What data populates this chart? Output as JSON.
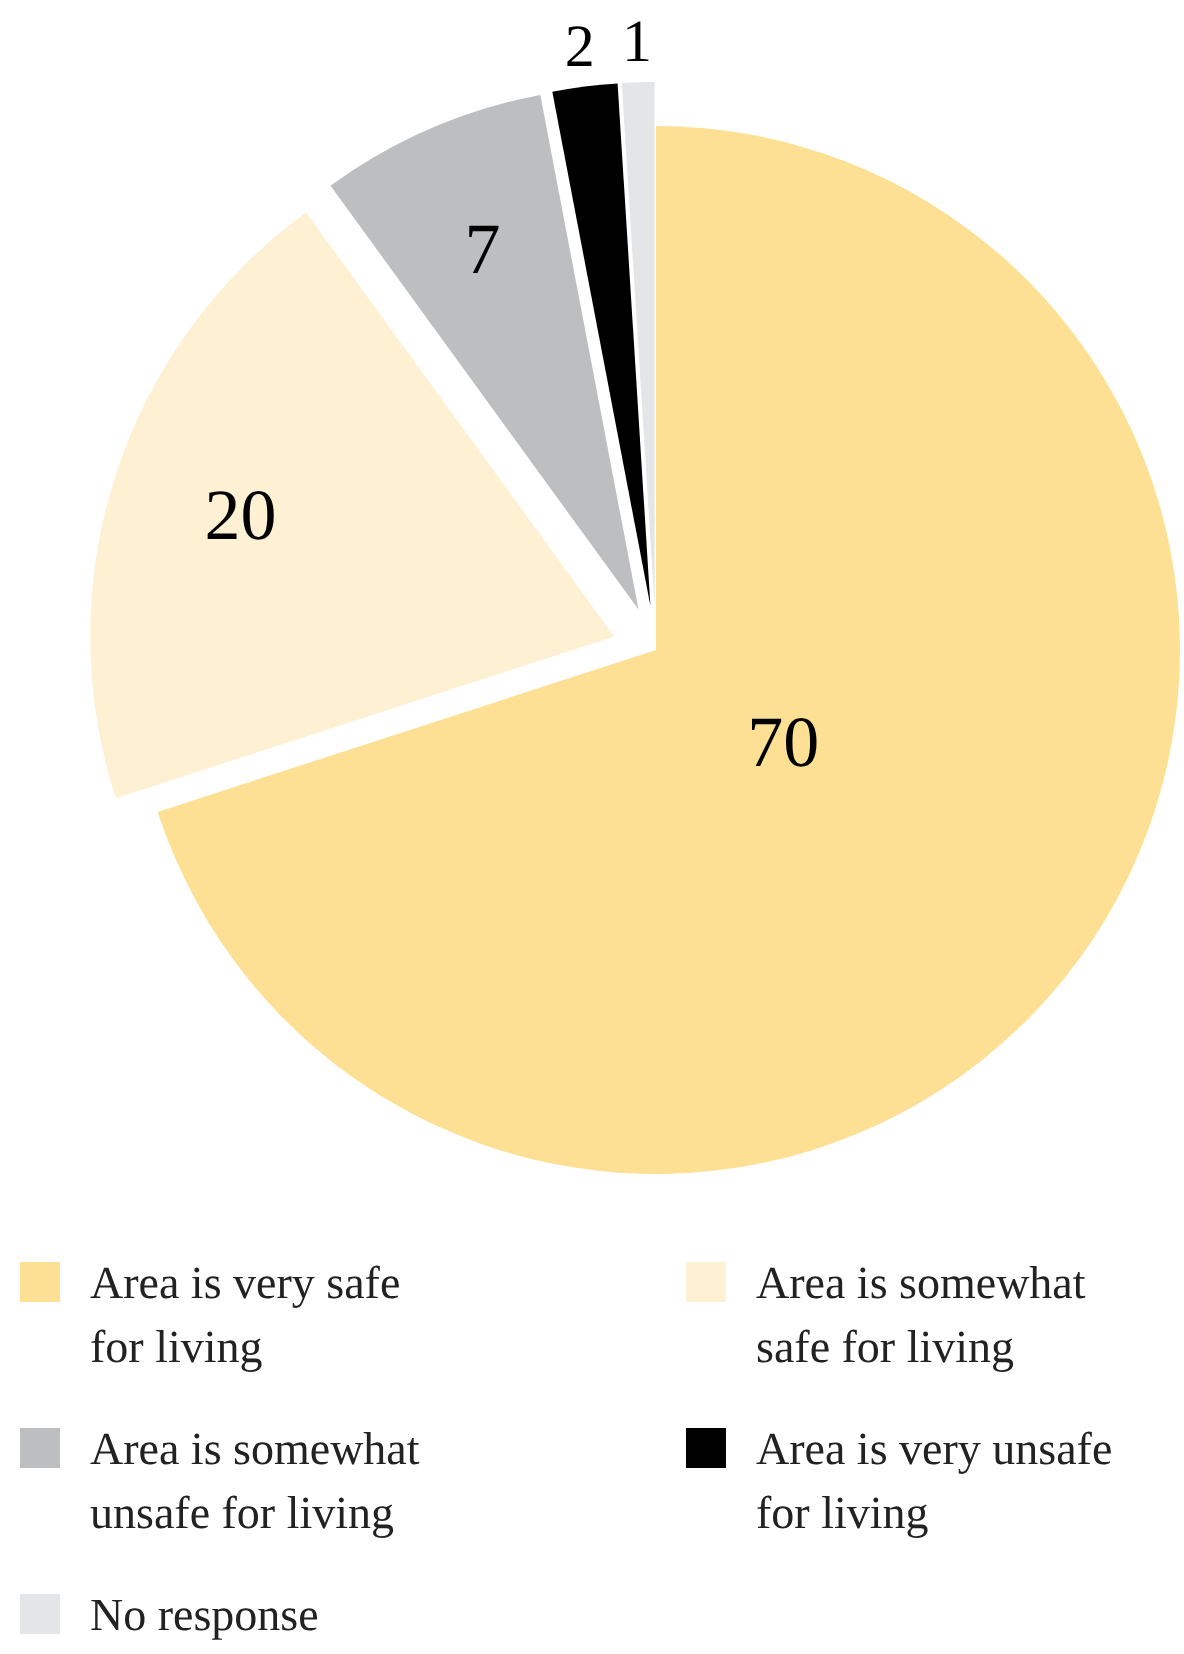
{
  "chart_data": {
    "type": "pie",
    "categories": [
      "Area is very safe for living",
      "Area is somewhat safe for living",
      "Area is somewhat unsafe for living",
      "Area is very unsafe for living",
      "No response"
    ],
    "values": [
      70,
      20,
      7,
      2,
      1
    ],
    "colors": [
      "#fee095",
      "#fef0d2",
      "#bdbec0",
      "#000000",
      "#e4e5e7"
    ],
    "data_labels": true,
    "legend": "bottom"
  }
}
